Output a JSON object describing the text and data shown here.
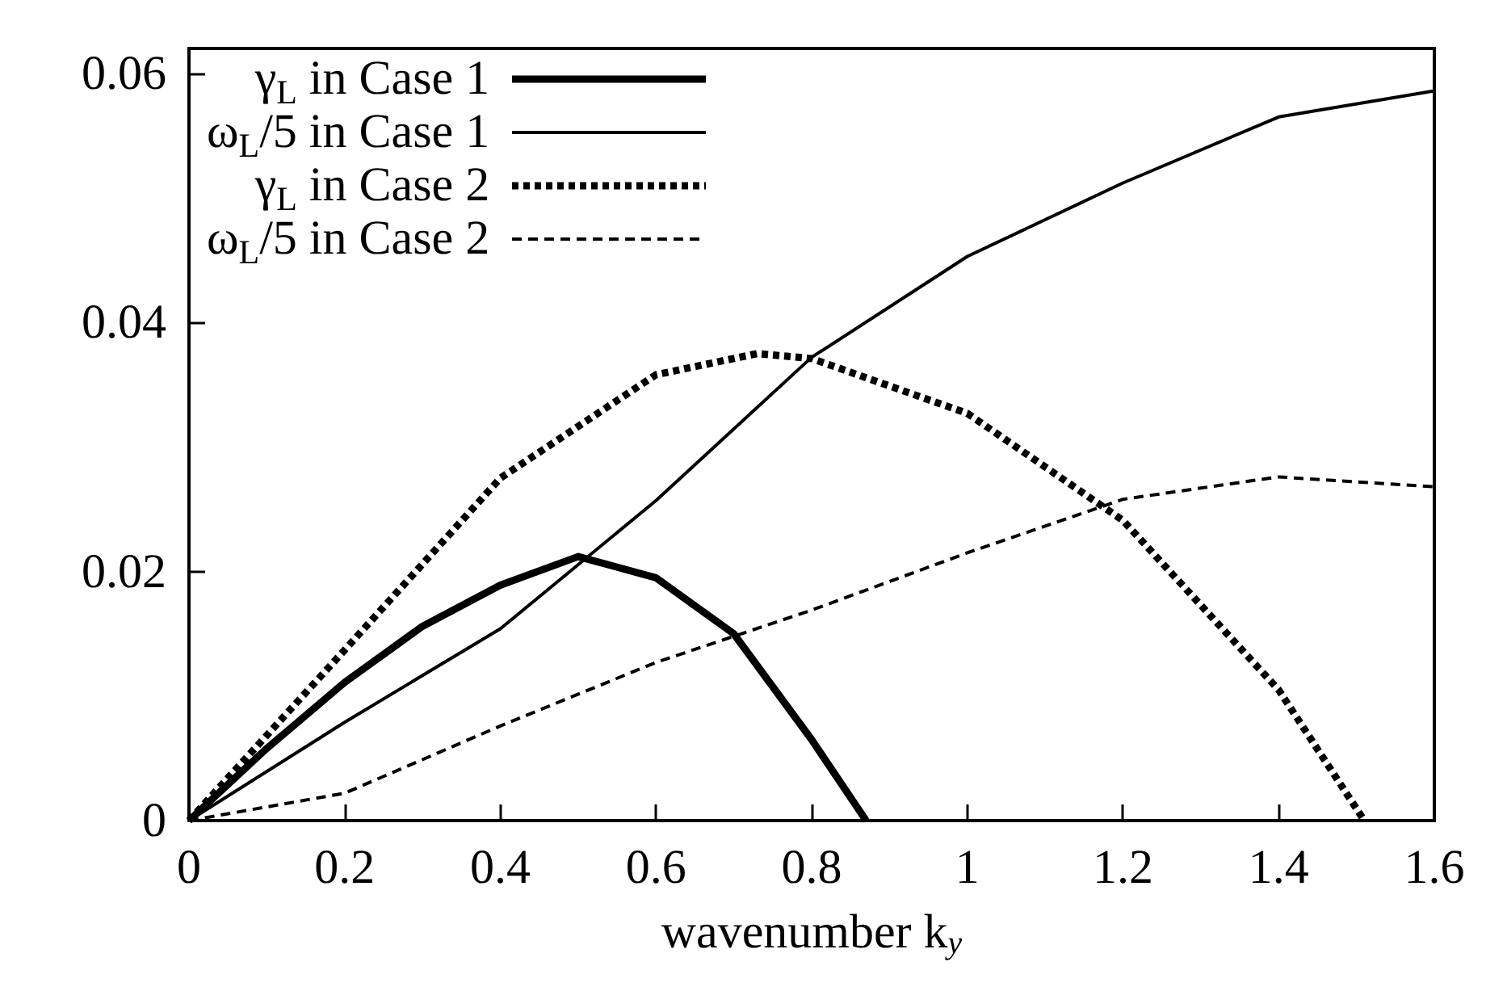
{
  "chart_data": {
    "type": "line",
    "xlabel": "wavenumber k$_{y}$",
    "xlim": [
      0,
      1.6
    ],
    "xticks": [
      0,
      0.2,
      0.4,
      0.6,
      0.8,
      1,
      1.2,
      1.4,
      1.6
    ],
    "ylim": [
      0,
      0.062
    ],
    "yticks": [
      0,
      0.02,
      0.04,
      0.06
    ],
    "grid": false,
    "legend": "top left",
    "marker": "none",
    "series": [
      {
        "name": "γ$_{L}$ in Case 1",
        "color": "#000000",
        "line_style": "solid",
        "x": [
          0,
          0.1,
          0.2,
          0.3,
          0.4,
          0.5,
          0.6,
          0.7,
          0.8,
          0.87
        ],
        "values": [
          0,
          0.0058,
          0.0111,
          0.0156,
          0.0189,
          0.0212,
          0.0195,
          0.015,
          0.0065,
          0
        ]
      },
      {
        "name": "ω$_{L}$/5 in Case 1",
        "color": "#000000",
        "line_style": "solid",
        "x": [
          0,
          0.2,
          0.4,
          0.6,
          0.8,
          1,
          1.2,
          1.4,
          1.6
        ],
        "values": [
          0,
          0.0079,
          0.0154,
          0.0257,
          0.0372,
          0.0453,
          0.0512,
          0.0565,
          0.0586
        ]
      },
      {
        "name": "γ$_{L}$ in Case 2",
        "color": "#000000",
        "line_style": "dotted",
        "x": [
          0,
          0.2,
          0.4,
          0.6,
          0.73,
          0.8,
          1,
          1.2,
          1.4,
          1.51
        ],
        "values": [
          0,
          0.0137,
          0.0275,
          0.0358,
          0.0375,
          0.0371,
          0.0327,
          0.0241,
          0.0105,
          0
        ]
      },
      {
        "name": "ω$_{L}$/5 in Case 2",
        "color": "#000000",
        "line_style": "dashed",
        "x": [
          0,
          0.2,
          0.4,
          0.6,
          0.8,
          1,
          1.2,
          1.4,
          1.6
        ],
        "values": [
          0,
          0.0022,
          0.0076,
          0.0127,
          0.0169,
          0.0215,
          0.0258,
          0.0276,
          0.0268
        ]
      }
    ]
  }
}
